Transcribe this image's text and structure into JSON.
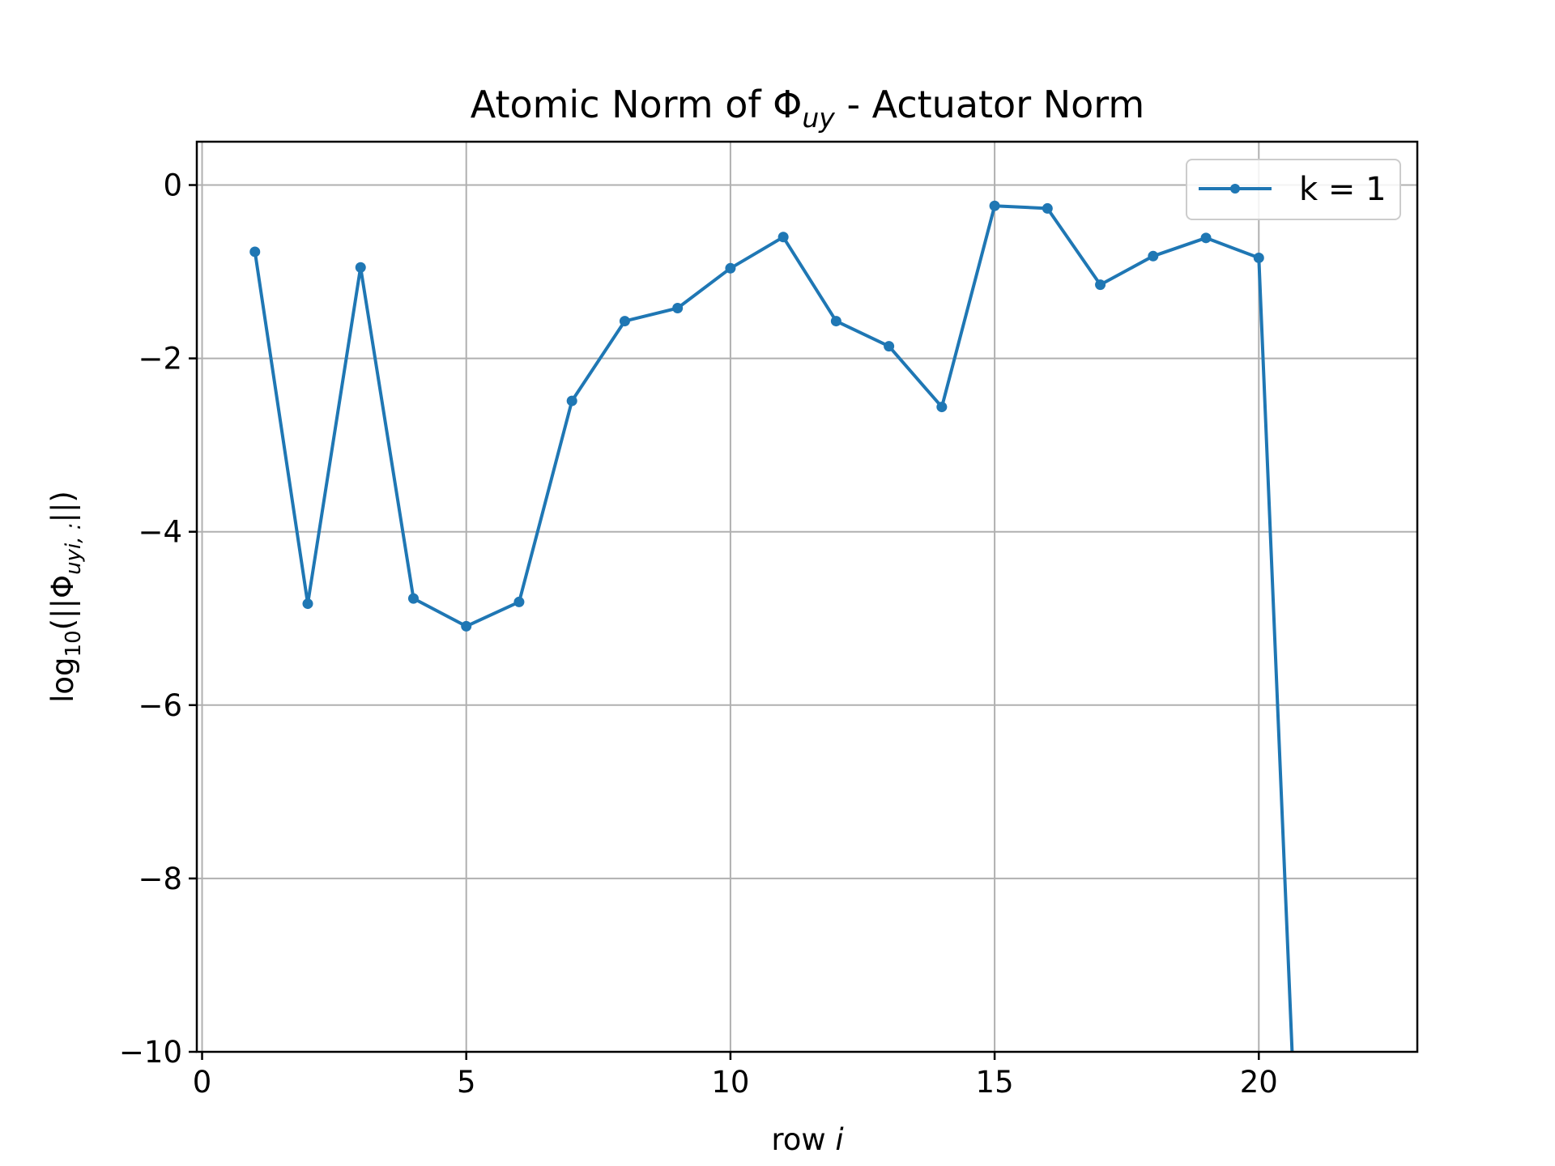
{
  "chart_data": {
    "type": "line",
    "title_main": "Atomic Norm of Φ",
    "title_sub": "uy",
    "title_rest": " - Actuator Norm",
    "xlabel_main": "row ",
    "xlabel_var": "i",
    "ylabel_parts": {
      "log": "log",
      "log_sub": "10",
      "open": "(||Φ",
      "phi_sub": "uyi, :",
      "close": "||)"
    },
    "xlim": [
      -0.1,
      23.0
    ],
    "ylim": [
      -10,
      0.5
    ],
    "xticks": [
      0,
      5,
      10,
      15,
      20
    ],
    "xtick_labels": [
      "0",
      "5",
      "10",
      "15",
      "20"
    ],
    "yticks": [
      0,
      -2,
      -4,
      -6,
      -8,
      -10
    ],
    "ytick_labels": [
      "0",
      "−2",
      "−4",
      "−6",
      "−8",
      "−10"
    ],
    "grid": true,
    "legend_position": "top-right",
    "series": [
      {
        "name": "k = 1",
        "color": "#1f77b4",
        "marker": "circle",
        "x": [
          1,
          2,
          3,
          4,
          5,
          6,
          7,
          8,
          9,
          10,
          11,
          12,
          13,
          14,
          15,
          16,
          17,
          18,
          19,
          20
        ],
        "y": [
          -0.77,
          -4.83,
          -0.95,
          -4.77,
          -5.09,
          -4.81,
          -2.49,
          -1.57,
          -1.42,
          -0.96,
          -0.6,
          -1.57,
          -1.86,
          -2.56,
          -0.24,
          -0.27,
          -1.15,
          -0.82,
          -0.61,
          -0.84
        ],
        "continuation": {
          "x": 20.63,
          "y": -10
        }
      }
    ]
  }
}
